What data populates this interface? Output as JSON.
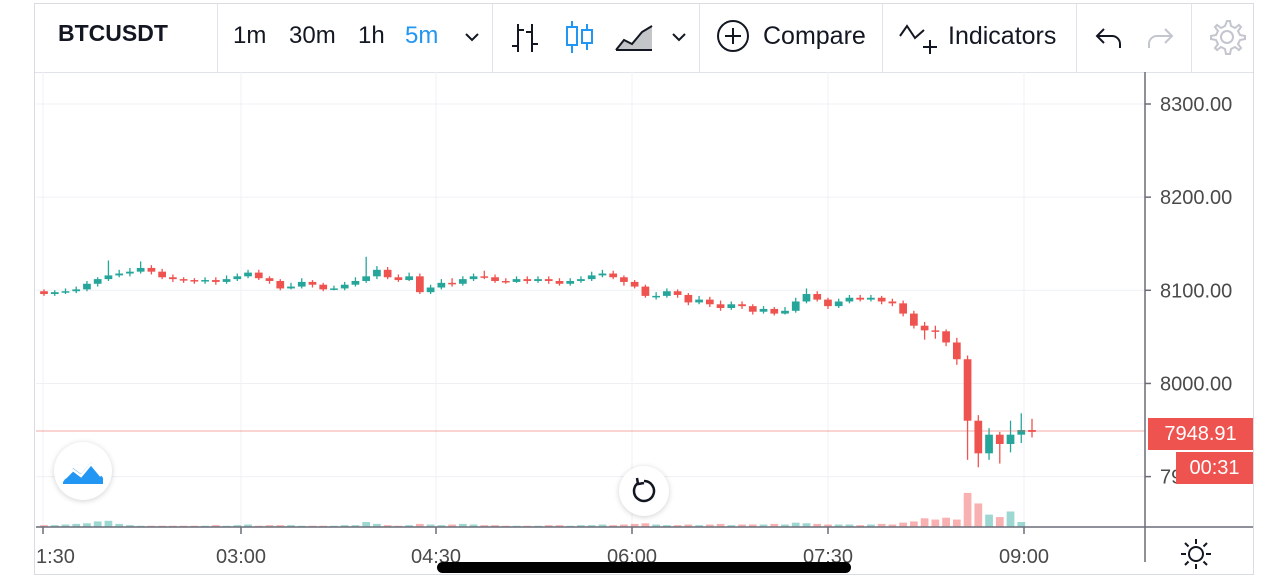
{
  "toolbar": {
    "symbol": "BTCUSDT",
    "intervals": [
      "1m",
      "30m",
      "1h",
      "5m"
    ],
    "active_interval": "5m",
    "compare_label": "Compare",
    "indicators_label": "Indicators"
  },
  "colors": {
    "up": "#26a69a",
    "down": "#ef5350",
    "accent": "#2196f3",
    "grid": "#eef0f4"
  },
  "icons": [
    "chevron-down-icon",
    "bar-chart-icon",
    "candle-chart-icon",
    "area-chart-icon",
    "plus-circle-icon",
    "indicators-icon",
    "undo-icon",
    "redo-icon",
    "gear-icon",
    "tradingview-logo-icon",
    "reset-icon",
    "sun-icon"
  ],
  "last_price": "7948.91",
  "countdown": "00:31",
  "chart_data": {
    "type": "candlestick",
    "price_ticks": [
      "8300.00",
      "8200.00",
      "8100.00",
      "8000.00",
      "7900.00"
    ],
    "time_ticks": [
      "1:30",
      "03:00",
      "04:30",
      "06:00",
      "07:30",
      "09:00"
    ],
    "ylim": [
      7850,
      8325
    ],
    "grid": true,
    "candles": [
      [
        8099,
        8096,
        8101,
        8094
      ],
      [
        8096,
        8098,
        8100,
        8094
      ],
      [
        8098,
        8099,
        8102,
        8096
      ],
      [
        8099,
        8101,
        8104,
        8097
      ],
      [
        8101,
        8107,
        8110,
        8099
      ],
      [
        8107,
        8112,
        8114,
        8104
      ],
      [
        8112,
        8116,
        8132,
        8110
      ],
      [
        8116,
        8118,
        8122,
        8114
      ],
      [
        8118,
        8120,
        8124,
        8115
      ],
      [
        8120,
        8124,
        8131,
        8118
      ],
      [
        8124,
        8120,
        8127,
        8117
      ],
      [
        8120,
        8114,
        8123,
        8112
      ],
      [
        8114,
        8112,
        8117,
        8109
      ],
      [
        8112,
        8111,
        8114,
        8108
      ],
      [
        8111,
        8110,
        8113,
        8107
      ],
      [
        8110,
        8111,
        8114,
        8107
      ],
      [
        8111,
        8109,
        8114,
        8106
      ],
      [
        8109,
        8112,
        8116,
        8107
      ],
      [
        8112,
        8115,
        8118,
        8110
      ],
      [
        8115,
        8119,
        8122,
        8113
      ],
      [
        8119,
        8113,
        8122,
        8111
      ],
      [
        8113,
        8110,
        8115,
        8107
      ],
      [
        8110,
        8102,
        8112,
        8100
      ],
      [
        8102,
        8104,
        8108,
        8101
      ],
      [
        8104,
        8109,
        8113,
        8102
      ],
      [
        8109,
        8106,
        8111,
        8103
      ],
      [
        8106,
        8101,
        8108,
        8099
      ],
      [
        8101,
        8102,
        8105,
        8100
      ],
      [
        8102,
        8106,
        8109,
        8100
      ],
      [
        8106,
        8110,
        8114,
        8104
      ],
      [
        8110,
        8115,
        8136,
        8108
      ],
      [
        8115,
        8122,
        8126,
        8112
      ],
      [
        8122,
        8114,
        8125,
        8112
      ],
      [
        8114,
        8111,
        8117,
        8109
      ],
      [
        8111,
        8115,
        8119,
        8110
      ],
      [
        8115,
        8098,
        8118,
        8096
      ],
      [
        8098,
        8103,
        8106,
        8096
      ],
      [
        8103,
        8108,
        8112,
        8101
      ],
      [
        8108,
        8107,
        8113,
        8104
      ],
      [
        8107,
        8112,
        8115,
        8105
      ],
      [
        8112,
        8115,
        8118,
        8110
      ],
      [
        8115,
        8114,
        8121,
        8112
      ],
      [
        8114,
        8110,
        8117,
        8108
      ],
      [
        8110,
        8109,
        8113,
        8107
      ],
      [
        8109,
        8112,
        8115,
        8108
      ],
      [
        8112,
        8110,
        8115,
        8107
      ],
      [
        8110,
        8112,
        8115,
        8108
      ],
      [
        8112,
        8110,
        8115,
        8107
      ],
      [
        8110,
        8107,
        8113,
        8105
      ],
      [
        8107,
        8110,
        8113,
        8105
      ],
      [
        8110,
        8112,
        8115,
        8108
      ],
      [
        8112,
        8116,
        8120,
        8110
      ],
      [
        8116,
        8118,
        8122,
        8114
      ],
      [
        8118,
        8114,
        8121,
        8112
      ],
      [
        8114,
        8109,
        8116,
        8105
      ],
      [
        8109,
        8104,
        8111,
        8102
      ],
      [
        8104,
        8094,
        8106,
        8092
      ],
      [
        8094,
        8094,
        8098,
        8090
      ],
      [
        8094,
        8099,
        8102,
        8092
      ],
      [
        8099,
        8095,
        8101,
        8092
      ],
      [
        8095,
        8087,
        8097,
        8084
      ],
      [
        8087,
        8090,
        8094,
        8085
      ],
      [
        8090,
        8085,
        8093,
        8082
      ],
      [
        8085,
        8081,
        8089,
        8078
      ],
      [
        8081,
        8085,
        8088,
        8079
      ],
      [
        8085,
        8083,
        8088,
        8080
      ],
      [
        8083,
        8077,
        8085,
        8074
      ],
      [
        8077,
        8080,
        8083,
        8075
      ],
      [
        8080,
        8075,
        8082,
        8073
      ],
      [
        8075,
        8078,
        8082,
        8074
      ],
      [
        8078,
        8088,
        8092,
        8076
      ],
      [
        8088,
        8096,
        8102,
        8086
      ],
      [
        8096,
        8090,
        8099,
        8088
      ],
      [
        8090,
        8083,
        8092,
        8080
      ],
      [
        8083,
        8088,
        8091,
        8081
      ],
      [
        8088,
        8092,
        8095,
        8086
      ],
      [
        8092,
        8090,
        8095,
        8088
      ],
      [
        8090,
        8092,
        8095,
        8088
      ],
      [
        8092,
        8088,
        8094,
        8085
      ],
      [
        8088,
        8086,
        8091,
        8083
      ],
      [
        8086,
        8075,
        8089,
        8072
      ],
      [
        8075,
        8062,
        8078,
        8059
      ],
      [
        8062,
        8057,
        8066,
        8047
      ],
      [
        8057,
        8056,
        8062,
        8048
      ],
      [
        8056,
        8044,
        8058,
        8040
      ],
      [
        8044,
        8026,
        8049,
        8020
      ],
      [
        8026,
        7960,
        8030,
        7918
      ],
      [
        7960,
        7925,
        7966,
        7910
      ],
      [
        7925,
        7945,
        7952,
        7918
      ],
      [
        7945,
        7935,
        7948,
        7914
      ],
      [
        7935,
        7945,
        7960,
        7926
      ],
      [
        7945,
        7950,
        7968,
        7936
      ],
      [
        7950,
        7948,
        7962,
        7942
      ]
    ],
    "volumes": [
      3,
      3,
      4,
      5,
      6,
      9,
      10,
      5,
      3,
      2,
      2,
      2,
      2,
      2,
      2,
      2,
      3,
      2,
      3,
      4,
      2,
      3,
      3,
      3,
      2,
      2,
      2,
      2,
      3,
      3,
      8,
      5,
      3,
      2,
      3,
      5,
      4,
      3,
      4,
      5,
      4,
      3,
      3,
      2,
      2,
      2,
      2,
      3,
      3,
      2,
      3,
      3,
      4,
      3,
      4,
      5,
      6,
      4,
      3,
      3,
      4,
      3,
      4,
      5,
      3,
      4,
      4,
      4,
      5,
      4,
      7,
      6,
      5,
      4,
      4,
      4,
      3,
      4,
      5,
      4,
      7,
      9,
      14,
      12,
      15,
      12,
      55,
      38,
      20,
      16,
      25,
      8
    ]
  }
}
